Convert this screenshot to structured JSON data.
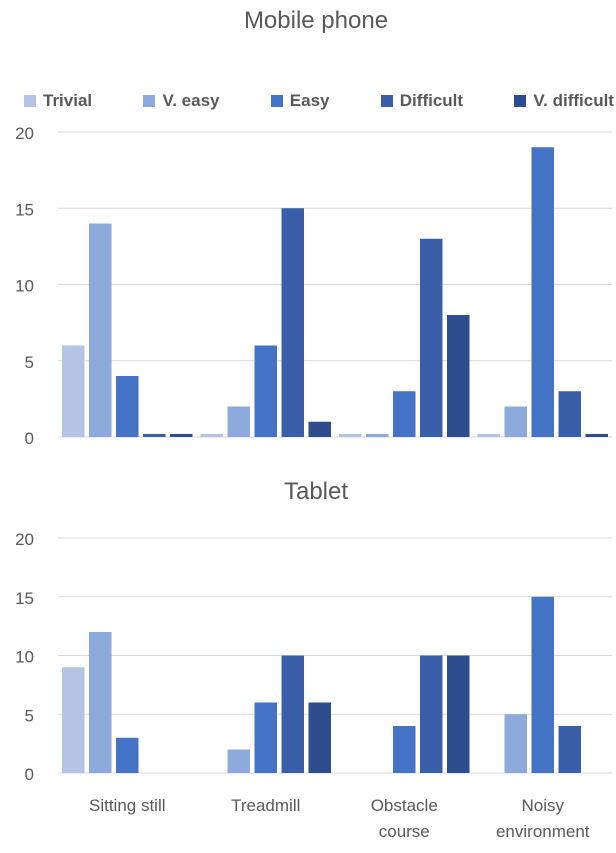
{
  "chart_data": [
    {
      "type": "bar",
      "title": "Mobile phone",
      "categories": [
        "Sitting still",
        "Treadmill",
        "Obstacle course",
        "Noisy environment"
      ],
      "series": [
        {
          "name": "Trivial",
          "color": "#b4c5e4",
          "values": [
            6,
            0.2,
            0.2,
            0.2
          ]
        },
        {
          "name": "V. easy",
          "color": "#8ea9db",
          "values": [
            14,
            2,
            0.2,
            2
          ]
        },
        {
          "name": "Easy",
          "color": "#4472c4",
          "values": [
            4,
            6,
            3,
            19
          ]
        },
        {
          "name": "Difficult",
          "color": "#3a5fa8",
          "values": [
            0.2,
            15,
            13,
            3
          ]
        },
        {
          "name": "V. difficult",
          "color": "#2e4d8f",
          "values": [
            0.2,
            1,
            8,
            0.2
          ]
        }
      ],
      "yticks": [
        0,
        5,
        10,
        15,
        20
      ],
      "ylim": [
        0,
        20
      ],
      "grid": true,
      "legend_position": "top"
    },
    {
      "type": "bar",
      "title": "Tablet",
      "categories": [
        "Sitting still",
        "Treadmill",
        "Obstacle course",
        "Noisy environment"
      ],
      "series": [
        {
          "name": "Trivial",
          "color": "#b4c5e4",
          "values": [
            9,
            0,
            0,
            0
          ]
        },
        {
          "name": "V. easy",
          "color": "#8ea9db",
          "values": [
            12,
            2,
            0,
            5
          ]
        },
        {
          "name": "Easy",
          "color": "#4472c4",
          "values": [
            3,
            6,
            4,
            15
          ]
        },
        {
          "name": "Difficult",
          "color": "#3a5fa8",
          "values": [
            0,
            10,
            10,
            4
          ]
        },
        {
          "name": "V. difficult",
          "color": "#2e4d8f",
          "values": [
            0,
            6,
            10,
            0
          ]
        }
      ],
      "yticks": [
        0,
        5,
        10,
        15,
        20
      ],
      "ylim": [
        0,
        20
      ],
      "grid": true,
      "x_tick_labels": [
        [
          "Sitting still"
        ],
        [
          "Treadmill"
        ],
        [
          "Obstacle",
          "course"
        ],
        [
          "Noisy",
          "environment"
        ]
      ]
    }
  ]
}
